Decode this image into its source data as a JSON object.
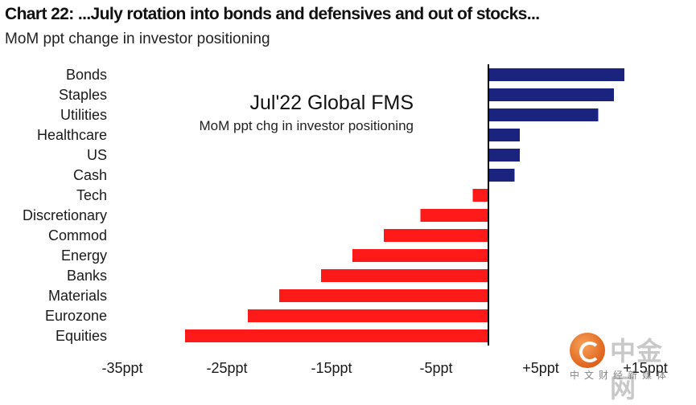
{
  "header": {
    "title": "Chart 22: ...July rotation into bonds and defensives and out of stocks...",
    "subtitle": "MoM ppt change in investor positioning"
  },
  "annotation": {
    "title": "Jul'22 Global FMS",
    "subtitle": "MoM ppt chg in investor positioning"
  },
  "watermark": {
    "brand": "中金网",
    "tagline": "中文财经新媒体"
  },
  "colors": {
    "positive": "#1a237e",
    "negative": "#ff1a1a",
    "axis": "#000000"
  },
  "chart_data": {
    "type": "bar",
    "orientation": "horizontal",
    "categories": [
      "Bonds",
      "Staples",
      "Utilities",
      "Healthcare",
      "US",
      "Cash",
      "Tech",
      "Discretionary",
      "Commod",
      "Energy",
      "Banks",
      "Materials",
      "Eurozone",
      "Equities"
    ],
    "values": [
      13,
      12,
      10.5,
      3,
      3,
      2.5,
      -1.5,
      -6.5,
      -10,
      -13,
      -16,
      -20,
      -23,
      -29
    ],
    "xlim": [
      -35,
      15
    ],
    "xticks": [
      -35,
      -25,
      -15,
      -5,
      5,
      15
    ],
    "xtick_labels": [
      "-35ppt",
      "-25ppt",
      "-15ppt",
      "-5ppt",
      "+5ppt",
      "+15ppt"
    ],
    "grid": false,
    "legend": "none"
  }
}
